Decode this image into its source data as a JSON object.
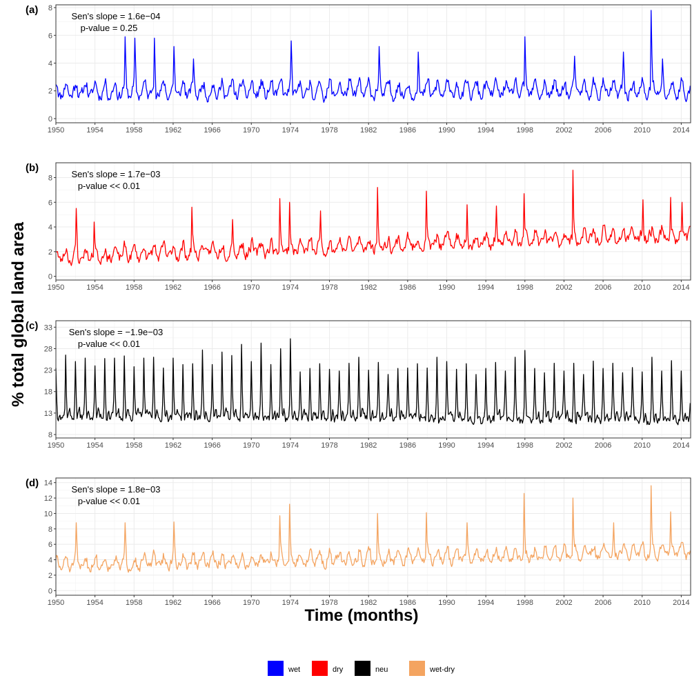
{
  "xlabel": "Time (months)",
  "ylabel": "% total global land area",
  "legend": [
    {
      "label": "wet",
      "color": "#0000ff"
    },
    {
      "label": "dry",
      "color": "#ff0000"
    },
    {
      "label": "neu",
      "color": "#000000"
    },
    {
      "label": "wet-dry",
      "color": "#f4a460"
    }
  ],
  "x_ticks": [
    "1950",
    "1954",
    "1958",
    "1962",
    "1966",
    "1970",
    "1974",
    "1978",
    "1982",
    "1986",
    "1990",
    "1994",
    "1998",
    "2002",
    "2006",
    "2010",
    "2014"
  ],
  "chart_data": [
    {
      "type": "line",
      "panel": "(a)",
      "series_name": "wet",
      "color": "#0000ff",
      "annotation": [
        "Sen's slope = 1.6e−04",
        "p-value = 0.25"
      ],
      "x_range": [
        "1950-01",
        "2014-12"
      ],
      "ylim": [
        -0.3,
        8.2
      ],
      "y_ticks": [
        0,
        2,
        4,
        6,
        8
      ],
      "baseline": 1.95,
      "seasonal_amp": 0.7,
      "trend_per_year": 0.0,
      "noise": 0.35,
      "seed": 11,
      "peaks": [
        [
          "1957-02",
          5.9
        ],
        [
          "1958-02",
          5.8
        ],
        [
          "1960-02",
          5.8
        ],
        [
          "1962-02",
          5.2
        ],
        [
          "1964-02",
          4.3
        ],
        [
          "1974-02",
          5.6
        ],
        [
          "1983-02",
          5.2
        ],
        [
          "1987-02",
          4.8
        ],
        [
          "1998-01",
          5.9
        ],
        [
          "2003-02",
          4.5
        ],
        [
          "2008-02",
          4.8
        ],
        [
          "2010-12",
          7.8
        ],
        [
          "2012-02",
          4.3
        ]
      ]
    },
    {
      "type": "line",
      "panel": "(b)",
      "series_name": "dry",
      "color": "#ff0000",
      "annotation": [
        "Sen's slope = 1.7e−03",
        "p-value << 0.01"
      ],
      "x_range": [
        "1950-01",
        "2014-12"
      ],
      "ylim": [
        -0.3,
        9.2
      ],
      "y_ticks": [
        0,
        2,
        4,
        6,
        8
      ],
      "baseline": 1.55,
      "seasonal_amp": 0.65,
      "trend_per_year": 0.028,
      "noise": 0.38,
      "seed": 23,
      "peaks": [
        [
          "1952-02",
          5.5
        ],
        [
          "1953-12",
          4.4
        ],
        [
          "1963-12",
          5.6
        ],
        [
          "1968-02",
          4.6
        ],
        [
          "1972-12",
          6.3
        ],
        [
          "1973-12",
          6.0
        ],
        [
          "1977-02",
          5.3
        ],
        [
          "1982-12",
          7.2
        ],
        [
          "1987-12",
          6.9
        ],
        [
          "1992-02",
          5.8
        ],
        [
          "1995-02",
          5.7
        ],
        [
          "1997-12",
          6.7
        ],
        [
          "2002-12",
          8.6
        ],
        [
          "2010-02",
          6.2
        ],
        [
          "2012-12",
          6.4
        ],
        [
          "2014-02",
          6.0
        ]
      ]
    },
    {
      "type": "line",
      "panel": "(c)",
      "series_name": "neu",
      "color": "#000000",
      "annotation": [
        "Sen's slope = −1.9e−03",
        "p-value << 0.01"
      ],
      "x_range": [
        "1950-01",
        "2014-12"
      ],
      "ylim": [
        7.2,
        34.5
      ],
      "y_ticks": [
        8,
        13,
        18,
        23,
        28,
        33
      ],
      "baseline": 12.3,
      "seasonal_amp": 0.0,
      "trend_per_year": -0.015,
      "noise": 0.9,
      "seed": 37,
      "annual_peaks": [
        [
          "1950",
          23.5
        ],
        [
          "1951",
          26.5
        ],
        [
          "1952",
          25.0
        ],
        [
          "1953",
          25.8
        ],
        [
          "1954",
          24.0
        ],
        [
          "1955",
          25.7
        ],
        [
          "1956",
          25.8
        ],
        [
          "1957",
          26.3
        ],
        [
          "1958",
          23.8
        ],
        [
          "1959",
          25.8
        ],
        [
          "1960",
          26.0
        ],
        [
          "1961",
          23.5
        ],
        [
          "1962",
          25.8
        ],
        [
          "1963",
          24.3
        ],
        [
          "1964",
          24.5
        ],
        [
          "1965",
          27.7
        ],
        [
          "1966",
          24.3
        ],
        [
          "1967",
          27.2
        ],
        [
          "1968",
          26.4
        ],
        [
          "1969",
          29.0
        ],
        [
          "1970",
          25.0
        ],
        [
          "1971",
          29.3
        ],
        [
          "1972",
          24.3
        ],
        [
          "1973",
          28.0
        ],
        [
          "1974",
          30.3
        ],
        [
          "1975",
          22.6
        ],
        [
          "1976",
          23.4
        ],
        [
          "1977",
          24.5
        ],
        [
          "1978",
          23.2
        ],
        [
          "1979",
          22.8
        ],
        [
          "1980",
          24.6
        ],
        [
          "1981",
          26.0
        ],
        [
          "1982",
          23.0
        ],
        [
          "1983",
          24.8
        ],
        [
          "1984",
          22.0
        ],
        [
          "1985",
          23.4
        ],
        [
          "1986",
          23.5
        ],
        [
          "1987",
          24.5
        ],
        [
          "1988",
          23.5
        ],
        [
          "1989",
          26.0
        ],
        [
          "1990",
          25.0
        ],
        [
          "1991",
          23.2
        ],
        [
          "1992",
          24.5
        ],
        [
          "1993",
          22.0
        ],
        [
          "1994",
          23.4
        ],
        [
          "1995",
          24.8
        ],
        [
          "1996",
          22.8
        ],
        [
          "1997",
          26.0
        ],
        [
          "1998",
          27.6
        ],
        [
          "1999",
          23.4
        ],
        [
          "2000",
          22.4
        ],
        [
          "2001",
          24.6
        ],
        [
          "2002",
          22.8
        ],
        [
          "2003",
          24.6
        ],
        [
          "2004",
          22.0
        ],
        [
          "2005",
          25.1
        ],
        [
          "2006",
          23.4
        ],
        [
          "2007",
          24.6
        ],
        [
          "2008",
          22.4
        ],
        [
          "2009",
          23.6
        ],
        [
          "2010",
          22.6
        ],
        [
          "2011",
          26.0
        ],
        [
          "2012",
          22.8
        ],
        [
          "2013",
          25.2
        ],
        [
          "2014",
          22.8
        ]
      ]
    },
    {
      "type": "line",
      "panel": "(d)",
      "series_name": "wet-dry",
      "color": "#f4a460",
      "annotation": [
        "Sen's slope = 1.8e−03",
        "p-value << 0.01"
      ],
      "x_range": [
        "1950-01",
        "2014-12"
      ],
      "ylim": [
        -0.6,
        14.6
      ],
      "y_ticks": [
        0,
        2,
        4,
        6,
        8,
        10,
        12,
        14
      ],
      "baseline": 3.3,
      "seasonal_amp": 1.0,
      "trend_per_year": 0.025,
      "noise": 0.55,
      "seed": 51,
      "peaks": [
        [
          "1952-02",
          8.8
        ],
        [
          "1957-02",
          8.8
        ],
        [
          "1962-02",
          8.9
        ],
        [
          "1972-12",
          9.7
        ],
        [
          "1973-12",
          11.2
        ],
        [
          "1982-12",
          10.0
        ],
        [
          "1987-12",
          10.1
        ],
        [
          "1992-02",
          8.8
        ],
        [
          "1997-12",
          12.6
        ],
        [
          "2002-12",
          12.0
        ],
        [
          "2007-02",
          8.8
        ],
        [
          "2010-12",
          13.6
        ],
        [
          "2012-12",
          10.2
        ]
      ]
    }
  ]
}
